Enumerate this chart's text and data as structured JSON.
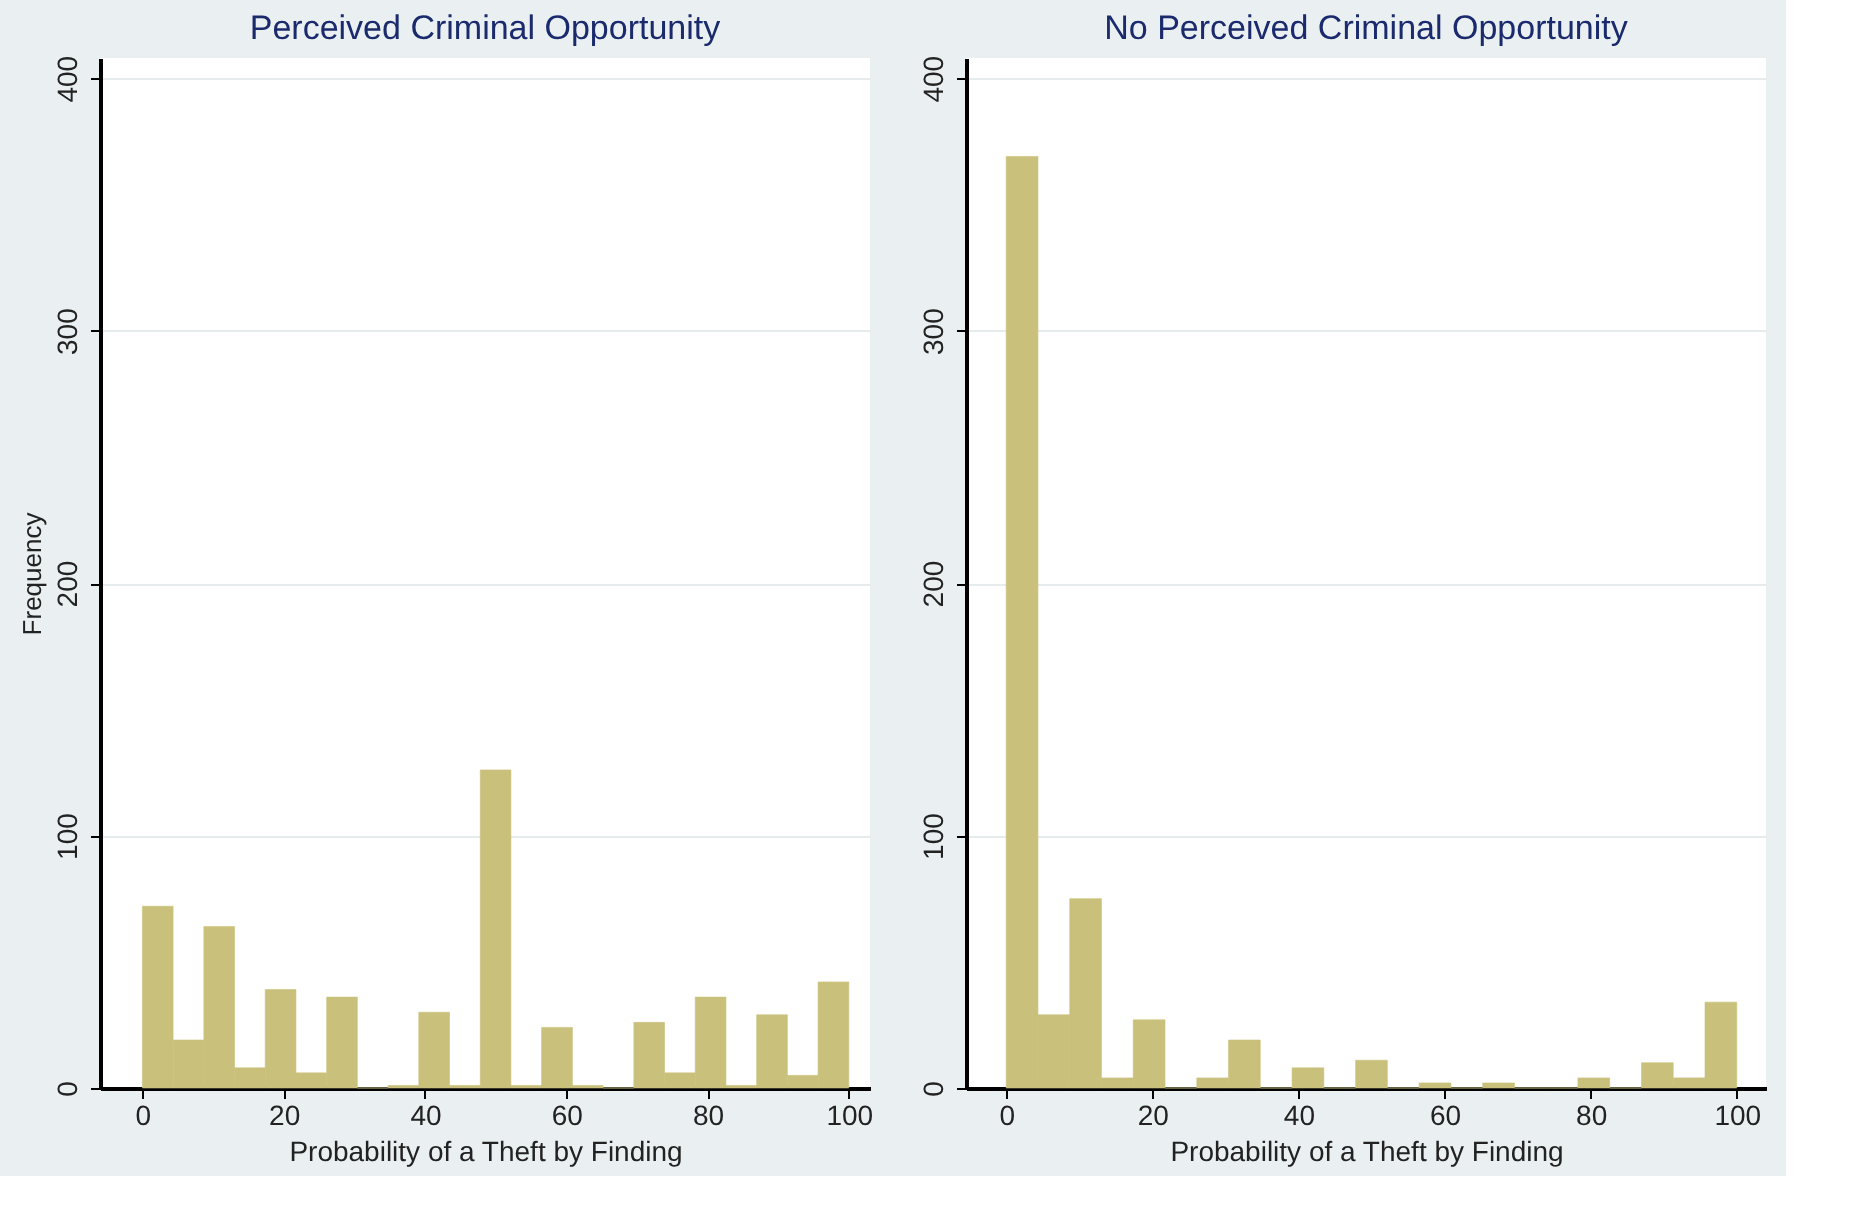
{
  "chart_data": [
    {
      "type": "histogram",
      "title": "Perceived Criminal Opportunity",
      "xlabel": "Probability of a Theft by Finding",
      "ylabel": "Frequency",
      "color": "#c9c17b",
      "bins": [
        0,
        4.35,
        8.7,
        13.04,
        17.39,
        21.74,
        26.09,
        30.43,
        34.78,
        39.13,
        43.48,
        47.83,
        52.17,
        56.52,
        60.87,
        65.22,
        69.57,
        73.91,
        78.26,
        82.61,
        86.96,
        91.3,
        95.65,
        100
      ],
      "values": [
        72,
        19,
        64,
        8,
        39,
        6,
        36,
        0,
        1,
        30,
        1,
        126,
        1,
        24,
        1,
        0,
        26,
        6,
        36,
        1,
        29,
        5,
        42
      ],
      "xlim": [
        -6,
        103
      ],
      "xticks": [
        0,
        20,
        40,
        60,
        80,
        100
      ],
      "ylim": [
        0,
        408
      ],
      "yticks": [
        0,
        100,
        200,
        300,
        400
      ],
      "grid": "y"
    },
    {
      "type": "histogram",
      "title": "No Perceived Criminal Opportunity",
      "xlabel": "Probability of a Theft by Finding",
      "color": "#c9c17b",
      "bins": [
        0,
        4.35,
        8.7,
        13.04,
        17.39,
        21.74,
        26.09,
        30.43,
        34.78,
        39.13,
        43.48,
        47.83,
        52.17,
        56.52,
        60.87,
        65.22,
        69.57,
        73.91,
        78.26,
        82.61,
        86.96,
        91.3,
        95.65,
        100
      ],
      "values": [
        369,
        29,
        75,
        4,
        27,
        0,
        4,
        19,
        0,
        8,
        0,
        11,
        0,
        2,
        0,
        2,
        0,
        0,
        4,
        0,
        10,
        4,
        34
      ],
      "xlim": [
        -5.5,
        104
      ],
      "xticks": [
        0,
        20,
        40,
        60,
        80,
        100
      ],
      "ylim": [
        0,
        408
      ],
      "yticks": [
        0,
        100,
        200,
        300,
        400
      ],
      "grid": "y"
    }
  ]
}
